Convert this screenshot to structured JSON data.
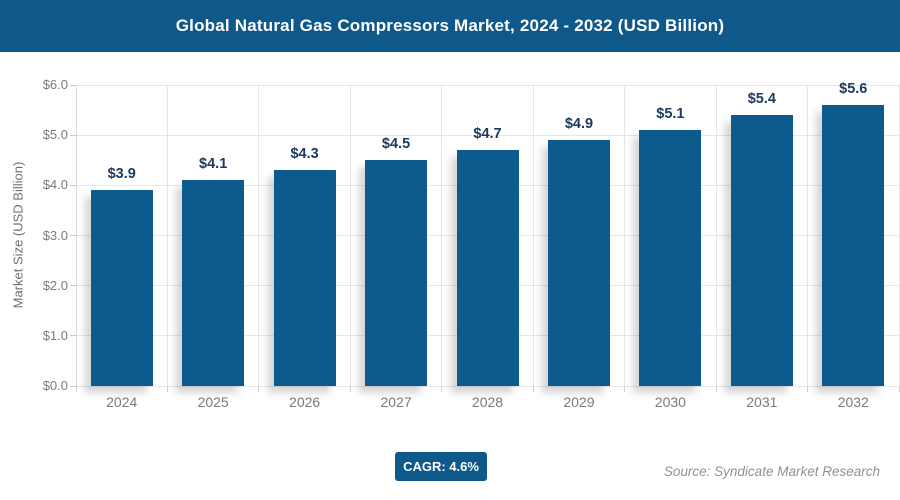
{
  "header": {
    "title": "Global Natural Gas Compressors Market, 2024 - 2032 (USD Billion)"
  },
  "chart_data": {
    "type": "bar",
    "title": "Global Natural Gas Compressors Market, 2024 - 2032 (USD Billion)",
    "categories": [
      "2024",
      "2025",
      "2026",
      "2027",
      "2028",
      "2029",
      "2030",
      "2031",
      "2032"
    ],
    "values": [
      3.9,
      4.1,
      4.3,
      4.5,
      4.7,
      4.9,
      5.1,
      5.4,
      5.6
    ],
    "bar_labels": [
      "$3.9",
      "$4.1",
      "$4.3",
      "$4.5",
      "$4.7",
      "$4.9",
      "$5.1",
      "$5.4",
      "$5.6"
    ],
    "xlabel": "",
    "ylabel": "Market Size (USD Billion)",
    "ylim": [
      0,
      6
    ],
    "ytick_labels": [
      "$0.0",
      "$1.0",
      "$2.0",
      "$3.0",
      "$4.0",
      "$5.0",
      "$6.0"
    ],
    "grid": true,
    "legend": false
  },
  "footer": {
    "cagr_label": "CAGR: 4.6%",
    "source": "Source: Syndicate Market Research"
  },
  "colors": {
    "header_bg": "#0e588a",
    "bar_fill": "#0d5a8c",
    "bar_label_text": "#1f3a60",
    "axis_text": "#7b7b7b",
    "grid_line": "#e6e6e6",
    "cagr_bg": "#0e588a",
    "source_text": "#8b9299"
  }
}
